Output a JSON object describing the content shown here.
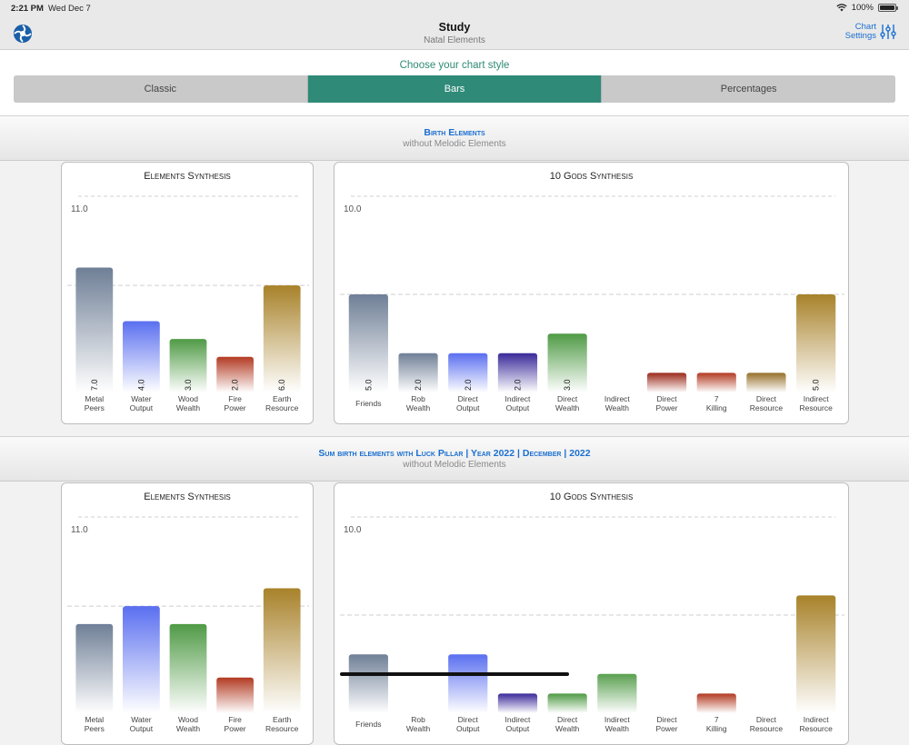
{
  "status_bar": {
    "time": "2:21 PM",
    "date": "Wed Dec 7",
    "battery": "100%"
  },
  "nav": {
    "title": "Study",
    "subtitle": "Natal Elements",
    "settings_line1": "Chart",
    "settings_line2": "Settings"
  },
  "style_chooser": {
    "label": "Choose your chart style",
    "options": [
      "Classic",
      "Bars",
      "Percentages"
    ],
    "selected": "Bars"
  },
  "colors": {
    "accent": "#2f8a78",
    "link": "#1a6fd1"
  },
  "sections": [
    {
      "title": "Birth Elements",
      "subtitle": "without Melodic Elements",
      "elements_card_title": "Elements Synthesis",
      "gods_card_title": "10 Gods Synthesis"
    },
    {
      "title": "Sum birth elements with Luck Pillar | Year 2022 | December | 2022",
      "subtitle": "without Melodic Elements",
      "elements_card_title": "Elements Synthesis",
      "gods_card_title": "10 Gods Synthesis"
    }
  ],
  "chart_data": [
    {
      "type": "bar",
      "title": "Elements Synthesis",
      "ymax_label": "11.0",
      "ylim": [
        0,
        11
      ],
      "categories": [
        [
          "Metal",
          "Peers"
        ],
        [
          "Water",
          "Output"
        ],
        [
          "Wood",
          "Wealth"
        ],
        [
          "Fire",
          "Power"
        ],
        [
          "Earth",
          "Resource"
        ]
      ],
      "values": [
        7.0,
        4.0,
        3.0,
        2.0,
        6.0
      ],
      "value_labels": [
        "7.0",
        "4.0",
        "3.0",
        "2.0",
        "6.0"
      ],
      "colors": [
        "#6f7f96",
        "#5a6ff0",
        "#4f9a45",
        "#b23a22",
        "#a8822a"
      ]
    },
    {
      "type": "bar",
      "title": "10 Gods Synthesis",
      "ymax_label": "10.0",
      "ylim": [
        0,
        10
      ],
      "categories": [
        [
          "Friends"
        ],
        [
          "Rob",
          "Wealth"
        ],
        [
          "Direct",
          "Output"
        ],
        [
          "Indirect",
          "Output"
        ],
        [
          "Direct",
          "Wealth"
        ],
        [
          "Indirect",
          "Wealth"
        ],
        [
          "Direct",
          "Power"
        ],
        [
          "7",
          "Killing"
        ],
        [
          "Direct",
          "Resource"
        ],
        [
          "Indirect",
          "Resource"
        ]
      ],
      "values": [
        5.0,
        2.0,
        2.0,
        2.0,
        3.0,
        0,
        1.0,
        1.0,
        1.0,
        5.0
      ],
      "value_labels": [
        "5.0",
        "2.0",
        "2.0",
        "2.0",
        "3.0",
        "",
        "",
        "",
        "",
        "5.0"
      ],
      "colors": [
        "#6f7f96",
        "#6f7f96",
        "#5a6ff0",
        "#3a2a9a",
        "#4f9a45",
        "#4f9a45",
        "#9a2a1a",
        "#b23a22",
        "#96702a",
        "#a8822a"
      ]
    },
    {
      "type": "bar",
      "title": "Elements Synthesis",
      "ymax_label": "11.0",
      "ylim": [
        0,
        11
      ],
      "categories": [
        [
          "Metal",
          "Peers"
        ],
        [
          "Water",
          "Output"
        ],
        [
          "Wood",
          "Wealth"
        ],
        [
          "Fire",
          "Power"
        ],
        [
          "Earth",
          "Resource"
        ]
      ],
      "values": [
        5.0,
        6.0,
        5.0,
        2.0,
        7.0
      ],
      "value_labels": [
        "",
        "",
        "",
        "",
        ""
      ],
      "colors": [
        "#6f7f96",
        "#5a6ff0",
        "#4f9a45",
        "#b23a22",
        "#a8822a"
      ]
    },
    {
      "type": "bar",
      "title": "10 Gods Synthesis",
      "ymax_label": "10.0",
      "ylim": [
        0,
        10
      ],
      "categories": [
        [
          "Friends"
        ],
        [
          "Rob",
          "Wealth"
        ],
        [
          "Direct",
          "Output"
        ],
        [
          "Indirect",
          "Output"
        ],
        [
          "Direct",
          "Wealth"
        ],
        [
          "Indirect",
          "Wealth"
        ],
        [
          "Direct",
          "Power"
        ],
        [
          "7",
          "Killing"
        ],
        [
          "Direct",
          "Resource"
        ],
        [
          "Indirect",
          "Resource"
        ]
      ],
      "values": [
        3.0,
        0,
        3.0,
        1.0,
        1.0,
        2.0,
        0,
        1.0,
        0,
        6.0
      ],
      "value_labels": [
        "",
        "",
        "",
        "",
        "",
        "",
        "",
        "",
        "",
        ""
      ],
      "colors": [
        "#6f7f96",
        "#6f7f96",
        "#5a6ff0",
        "#3a2a9a",
        "#4f9a45",
        "#5aa050",
        "#9a2a1a",
        "#b23a22",
        "#96702a",
        "#a8822a"
      ]
    }
  ]
}
